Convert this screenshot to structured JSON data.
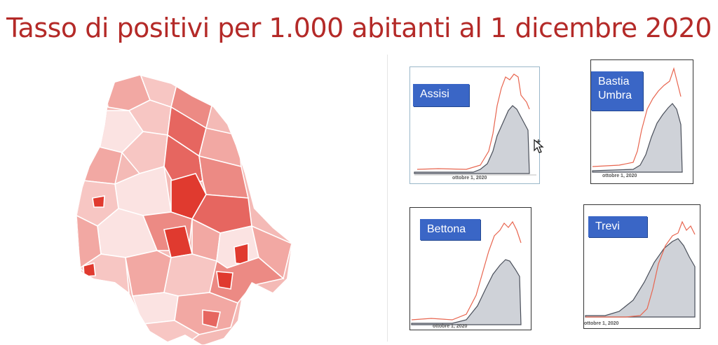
{
  "slide": {
    "title": "Tasso di positivi per 1.000 abitanti al 1 dicembre 2020"
  },
  "colors": {
    "title": "#b42a28",
    "label_bg": "#3a66c6",
    "line": "#e8654f",
    "area_fill": "#cfd2d8",
    "area_stroke": "#4a4f5a"
  },
  "map": {
    "region": "Umbria",
    "shades": [
      "#fbe3e2",
      "#f7c6c3",
      "#f2a8a3",
      "#ec8a84",
      "#e66660",
      "#e03a2f"
    ]
  },
  "panels": [
    {
      "id": "assisi",
      "label": "Assisi",
      "date_label": "ottobre 1, 2020"
    },
    {
      "id": "bastia",
      "label": "Bastia Umbra",
      "date_label": "ottobre 1, 2020"
    },
    {
      "id": "bettona",
      "label": "Bettona",
      "date_label": "ottobre 1, 2020"
    },
    {
      "id": "trevi",
      "label": "Trevi",
      "date_label": "ottobre 1, 2020"
    }
  ],
  "icons": {
    "cursor": "move-cursor-icon"
  }
}
